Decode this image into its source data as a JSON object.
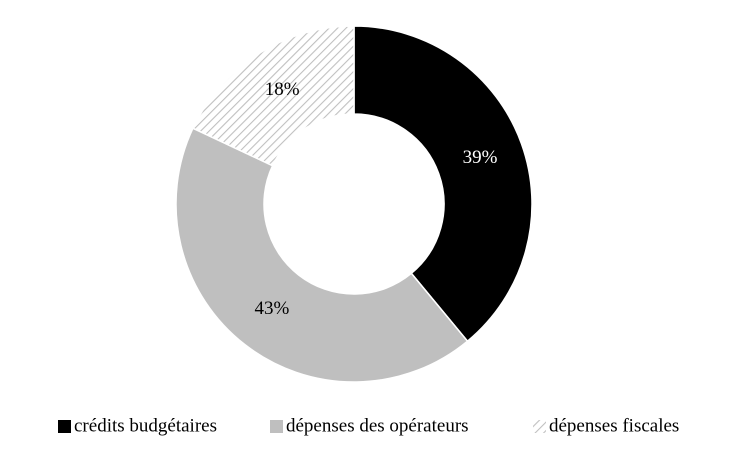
{
  "chart_data": {
    "type": "donut",
    "categories": [
      "crédits budgétaires",
      "dépenses des opérateurs",
      "dépenses fiscales"
    ],
    "values": [
      39,
      43,
      18
    ],
    "value_labels": [
      "39%",
      "43%",
      "18%"
    ],
    "colors": [
      "#000000",
      "#bfbfbf",
      "#bfbfbf"
    ],
    "hatched": [
      false,
      false,
      true
    ],
    "label_colors": [
      "#ffffff",
      "#000000",
      "#000000"
    ],
    "legend": "bottom"
  }
}
